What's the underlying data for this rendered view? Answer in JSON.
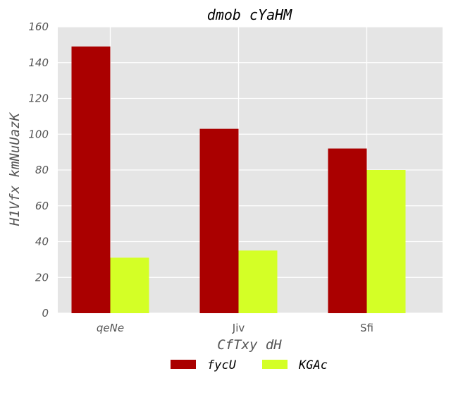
{
  "chart_data": {
    "type": "bar",
    "title": "dmob cYaHM",
    "xlabel": "CfTxy dH",
    "ylabel": "H1Vfx kmNuUazK",
    "categories": [
      "qeNe",
      "Jiv",
      "Sfi"
    ],
    "category_italic": [
      true,
      false,
      false
    ],
    "series": [
      {
        "name": "fycU",
        "values": [
          149,
          103,
          92
        ],
        "color": "#aa0000"
      },
      {
        "name": "KGAc",
        "values": [
          31,
          35,
          80
        ],
        "color": "#d4ff26"
      }
    ],
    "ylim": [
      0,
      160
    ],
    "yticks": [
      0,
      20,
      40,
      60,
      80,
      100,
      120,
      140,
      160
    ],
    "grid": true,
    "legend": "bottom-center",
    "background": "#e5e5e5"
  }
}
